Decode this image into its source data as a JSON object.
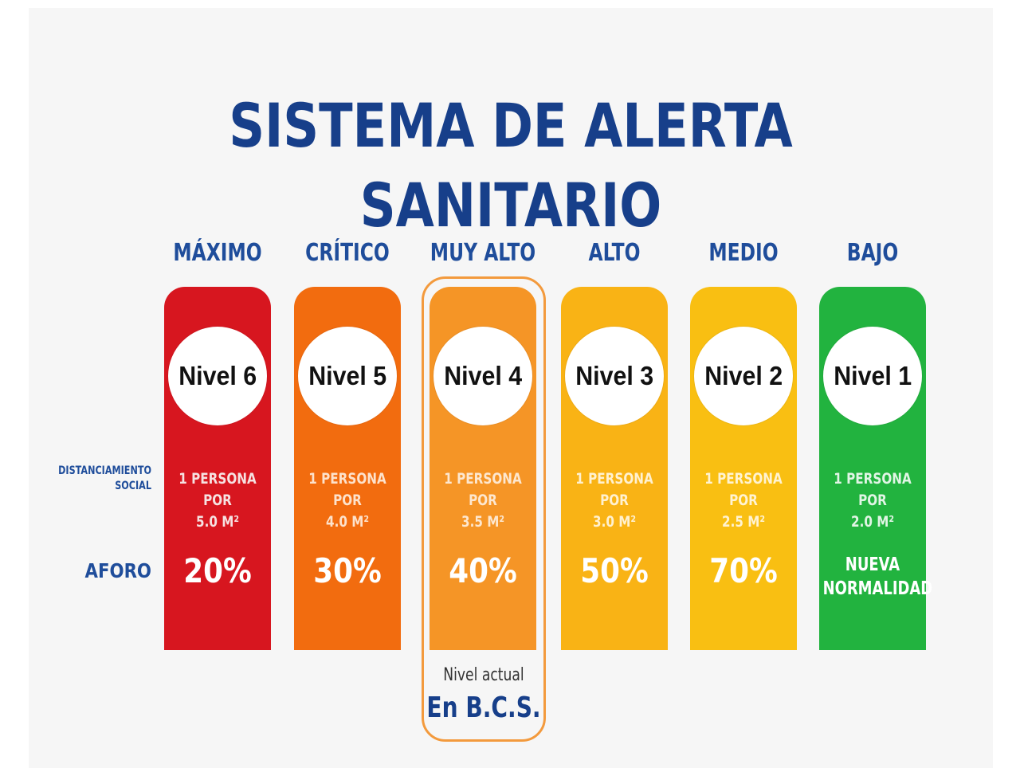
{
  "title": "SISTEMA DE ALERTA SANITARIO",
  "row_labels": {
    "distanciamiento": "DISTANCIAMIENTO\nSOCIAL",
    "aforo": "AFORO"
  },
  "levels": [
    {
      "name": "MÁXIMO",
      "nivel": "Nivel 6",
      "distanciamiento": "1 PERSONA POR\n5.0 M²",
      "aforo": "20%",
      "color": "#d7161f",
      "dist_color": "#f6e2e2"
    },
    {
      "name": "CRÍTICO",
      "nivel": "Nivel 5",
      "distanciamiento": "1 PERSONA POR\n4.0 M²",
      "aforo": "30%",
      "color": "#f26c0f",
      "dist_color": "#fde2cc"
    },
    {
      "name": "MUY ALTO",
      "nivel": "Nivel 4",
      "distanciamiento": "1 PERSONA POR\n3.5 M²",
      "aforo": "40%",
      "color": "#f59526",
      "dist_color": "#fde7cf"
    },
    {
      "name": "ALTO",
      "nivel": "Nivel 3",
      "distanciamiento": "1 PERSONA POR\n3.0 M²",
      "aforo": "50%",
      "color": "#f9b315",
      "dist_color": "#fff1d0"
    },
    {
      "name": "MEDIO",
      "nivel": "Nivel 2",
      "distanciamiento": "1 PERSONA POR\n2.5 M²",
      "aforo": "70%",
      "color": "#f9bf12",
      "dist_color": "#fff3d2"
    },
    {
      "name": "BAJO",
      "nivel": "Nivel 1",
      "distanciamiento": "1 PERSONA POR\n2.0 M²",
      "aforo": "NUEVA\nNORMALIDAD",
      "color": "#22b33f",
      "dist_color": "#e1f5e5"
    }
  ],
  "current": {
    "label": "Nivel actual",
    "place": "En B.C.S.",
    "highlight_color": "#f39a3d"
  },
  "colors": {
    "title": "#173f8a",
    "labels": "#1f4d9b",
    "background": "#f6f6f6"
  }
}
